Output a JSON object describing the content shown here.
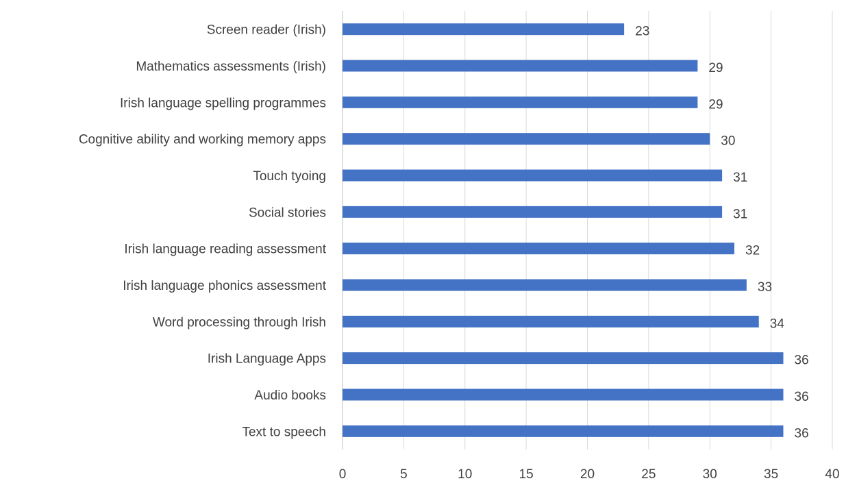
{
  "chart_data": {
    "type": "bar",
    "orientation": "horizontal",
    "categories": [
      "Screen reader (Irish)",
      "Mathematics assessments (Irish)",
      "Irish language spelling programmes",
      "Cognitive ability and working memory apps",
      "Touch tyoing",
      "Social stories",
      "Irish language reading assessment",
      "Irish language phonics assessment",
      "Word processing through Irish",
      "Irish Language Apps",
      "Audio books",
      "Text to speech"
    ],
    "values": [
      23,
      29,
      29,
      30,
      31,
      31,
      32,
      33,
      34,
      36,
      36,
      36
    ],
    "x_ticks": [
      0,
      5,
      10,
      15,
      20,
      25,
      30,
      35,
      40
    ],
    "xlim": [
      0,
      40
    ],
    "grid": true,
    "legend": "none",
    "data_labels": true,
    "bar_color": "#4472c4"
  }
}
